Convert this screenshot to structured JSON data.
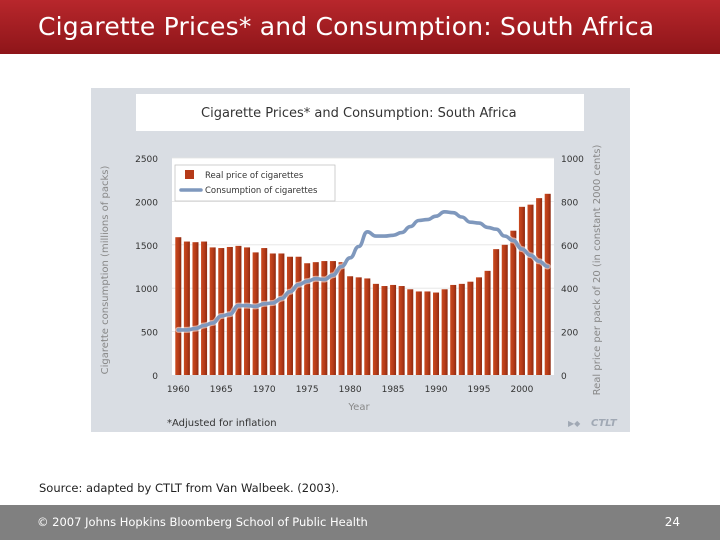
{
  "slide": {
    "title": "Cigarette Prices* and Consumption: South Africa",
    "source": "Source: adapted by CTLT from Van Walbeek. (2003).",
    "copyright": "© 2007 Johns Hopkins Bloomberg School of Public Health",
    "page_number": "24"
  },
  "chart_data": {
    "type": "bar",
    "title": "Cigarette Prices* and Consumption: South Africa",
    "xlabel": "Year",
    "ylabel_left": "Cigarette consumption (millions of packs)",
    "ylabel_right": "Real price per pack of 20 (in constant 2000 cents)",
    "footnote": "*Adjusted for inflation",
    "logo_text": "CTLT",
    "legend_position": "top-left",
    "ylim_left": [
      0,
      2500
    ],
    "ylim_right": [
      0,
      1000
    ],
    "y_ticks_left": [
      "0",
      "500",
      "1000",
      "1500",
      "2000",
      "2500"
    ],
    "y_ticks_right": [
      "0",
      "200",
      "400",
      "600",
      "800",
      "1000"
    ],
    "x_ticks": [
      "1960",
      "1965",
      "1970",
      "1975",
      "1980",
      "1985",
      "1990",
      "1995",
      "2000"
    ],
    "categories": [
      1960,
      1961,
      1962,
      1963,
      1964,
      1965,
      1966,
      1967,
      1968,
      1969,
      1970,
      1971,
      1972,
      1973,
      1974,
      1975,
      1976,
      1977,
      1978,
      1979,
      1980,
      1981,
      1982,
      1983,
      1984,
      1985,
      1986,
      1987,
      1988,
      1989,
      1990,
      1991,
      1992,
      1993,
      1994,
      1995,
      1996,
      1997,
      1998,
      1999,
      2000,
      2001,
      2002,
      2003
    ],
    "series": [
      {
        "name": "Real price of cigarettes",
        "axis": "right",
        "kind": "bar",
        "color": "#b53a18",
        "values": [
          635,
          615,
          612,
          615,
          588,
          585,
          590,
          595,
          588,
          565,
          585,
          560,
          560,
          545,
          545,
          515,
          520,
          525,
          525,
          520,
          455,
          450,
          445,
          420,
          410,
          415,
          410,
          395,
          385,
          385,
          380,
          395,
          415,
          420,
          430,
          450,
          480,
          580,
          600,
          665,
          775,
          785,
          815,
          835
        ]
      },
      {
        "name": "Consumption of cigarettes",
        "axis": "left",
        "kind": "line",
        "color": "#7f98bd",
        "values": [
          520,
          520,
          535,
          570,
          600,
          680,
          700,
          800,
          800,
          790,
          820,
          830,
          880,
          960,
          1040,
          1080,
          1110,
          1100,
          1150,
          1250,
          1350,
          1480,
          1650,
          1600,
          1600,
          1610,
          1640,
          1710,
          1780,
          1790,
          1830,
          1880,
          1870,
          1820,
          1760,
          1750,
          1700,
          1680,
          1600,
          1550,
          1450,
          1380,
          1310,
          1250
        ]
      }
    ]
  }
}
